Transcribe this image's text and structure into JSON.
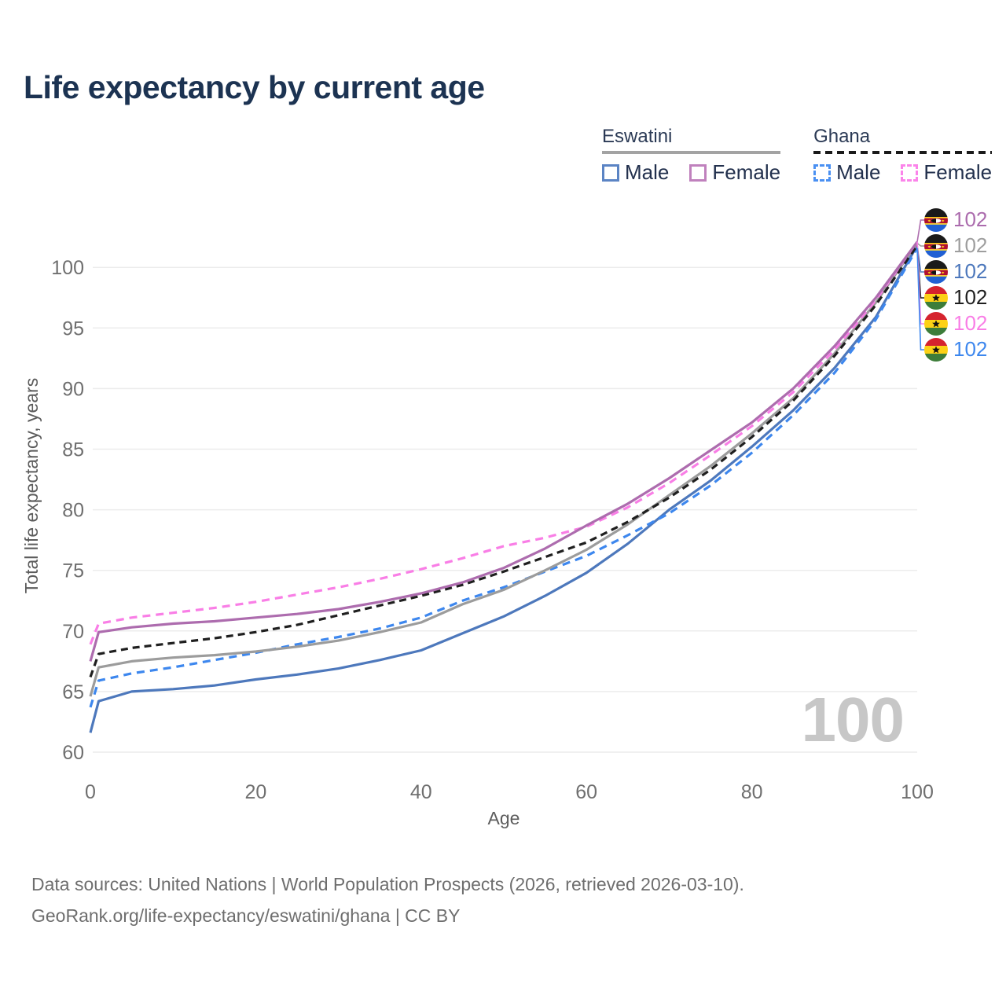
{
  "header": {
    "title": "Life expectancy by current age"
  },
  "legend": {
    "groups": [
      {
        "country": "Eswatini",
        "line_style": "solid",
        "underline_color": "#a3a3a3",
        "items": [
          {
            "label": "Male",
            "color": "#5b84c4",
            "dashed": false
          },
          {
            "label": "Female",
            "color": "#c081bd",
            "dashed": false
          }
        ]
      },
      {
        "country": "Ghana",
        "line_style": "dashed",
        "underline_color": "#1a1a1a",
        "items": [
          {
            "label": "Male",
            "color": "#4a90f2",
            "dashed": true
          },
          {
            "label": "Female",
            "color": "#fb84ea",
            "dashed": true
          }
        ]
      }
    ]
  },
  "chart_data": {
    "type": "line",
    "title": "Life expectancy by current age",
    "xlabel": "Age",
    "ylabel": "Total life expectancy, years",
    "xlim": [
      0,
      100
    ],
    "ylim": [
      60,
      104
    ],
    "x_ticks": [
      0,
      20,
      40,
      60,
      80,
      100
    ],
    "y_ticks": [
      60,
      65,
      70,
      75,
      80,
      85,
      90,
      95,
      100
    ],
    "grid": "horizontal-only",
    "grid_color": "#ececec",
    "tick_color": "#6f6f6f",
    "axis_title_color": "#5c5c5c",
    "x": [
      0,
      1,
      5,
      10,
      15,
      20,
      25,
      30,
      35,
      40,
      45,
      50,
      55,
      60,
      65,
      70,
      75,
      80,
      85,
      90,
      95,
      100
    ],
    "series": [
      {
        "name": "Eswatini Female",
        "country": "Eswatini",
        "sex": "Female",
        "color": "#ad6cae",
        "dash": "none",
        "z": 6,
        "flag": "eswatini",
        "end_label": "102",
        "end_label_color": "#ab6bad",
        "values": [
          67.5,
          69.9,
          70.3,
          70.6,
          70.8,
          71.1,
          71.4,
          71.8,
          72.4,
          73.1,
          74.0,
          75.2,
          76.8,
          78.7,
          80.5,
          82.6,
          84.9,
          87.2,
          90.0,
          93.5,
          97.5,
          102.1
        ]
      },
      {
        "name": "Eswatini Both sexes",
        "country": "Eswatini",
        "sex": "Both",
        "color": "#9c9c9c",
        "dash": "none",
        "z": 3,
        "flag": "eswatini",
        "end_label": "102",
        "end_label_color": "#9e9e9e",
        "values": [
          64.6,
          67.0,
          67.5,
          67.8,
          68.0,
          68.3,
          68.7,
          69.2,
          69.9,
          70.7,
          72.2,
          73.4,
          75.0,
          76.7,
          78.8,
          81.2,
          83.6,
          86.3,
          89.2,
          92.9,
          97.1,
          102.0
        ]
      },
      {
        "name": "Eswatini Male",
        "country": "Eswatini",
        "sex": "Male",
        "color": "#4d78bc",
        "dash": "none",
        "z": 1,
        "flag": "eswatini",
        "end_label": "102",
        "end_label_color": "#4d78bc",
        "values": [
          61.6,
          64.2,
          65.0,
          65.2,
          65.5,
          66.0,
          66.4,
          66.9,
          67.6,
          68.4,
          69.8,
          71.2,
          72.9,
          74.8,
          77.2,
          80.0,
          82.4,
          85.2,
          88.2,
          91.7,
          95.9,
          101.8
        ]
      },
      {
        "name": "Ghana Both sexes",
        "country": "Ghana",
        "sex": "Both",
        "color": "#1f1f1f",
        "dash": "9 6",
        "z": 4,
        "flag": "ghana",
        "end_label": "102",
        "end_label_color": "#1f1f1f",
        "values": [
          66.2,
          68.1,
          68.6,
          69.0,
          69.4,
          69.9,
          70.5,
          71.3,
          72.1,
          72.9,
          73.8,
          74.9,
          76.1,
          77.3,
          79.0,
          81.0,
          83.3,
          86.0,
          89.0,
          92.7,
          96.9,
          101.8
        ]
      },
      {
        "name": "Ghana Female",
        "country": "Ghana",
        "sex": "Female",
        "color": "#f97ee6",
        "dash": "10 7",
        "z": 5,
        "flag": "ghana",
        "end_label": "102",
        "end_label_color": "#f97ee6",
        "values": [
          68.9,
          70.6,
          71.1,
          71.5,
          71.9,
          72.4,
          73.0,
          73.6,
          74.3,
          75.1,
          76.0,
          77.0,
          77.7,
          78.6,
          80.2,
          82.2,
          84.5,
          86.9,
          89.7,
          93.2,
          97.3,
          102.1
        ]
      },
      {
        "name": "Ghana Male",
        "country": "Ghana",
        "sex": "Male",
        "color": "#3d87ee",
        "dash": "10 7",
        "z": 2,
        "flag": "ghana",
        "end_label": "102",
        "end_label_color": "#3d87ee",
        "values": [
          63.7,
          65.9,
          66.5,
          67.0,
          67.6,
          68.2,
          68.9,
          69.5,
          70.2,
          71.1,
          72.5,
          73.6,
          74.9,
          76.2,
          77.9,
          79.7,
          82.0,
          84.7,
          87.8,
          91.3,
          95.7,
          101.6
        ]
      }
    ]
  },
  "watermark": {
    "text": "100"
  },
  "footer": {
    "line1": "Data sources: United Nations | World Population Prospects (2026, retrieved 2026-03-10).",
    "line2": "GeoRank.org/life-expectancy/eswatini/ghana | CC BY"
  }
}
